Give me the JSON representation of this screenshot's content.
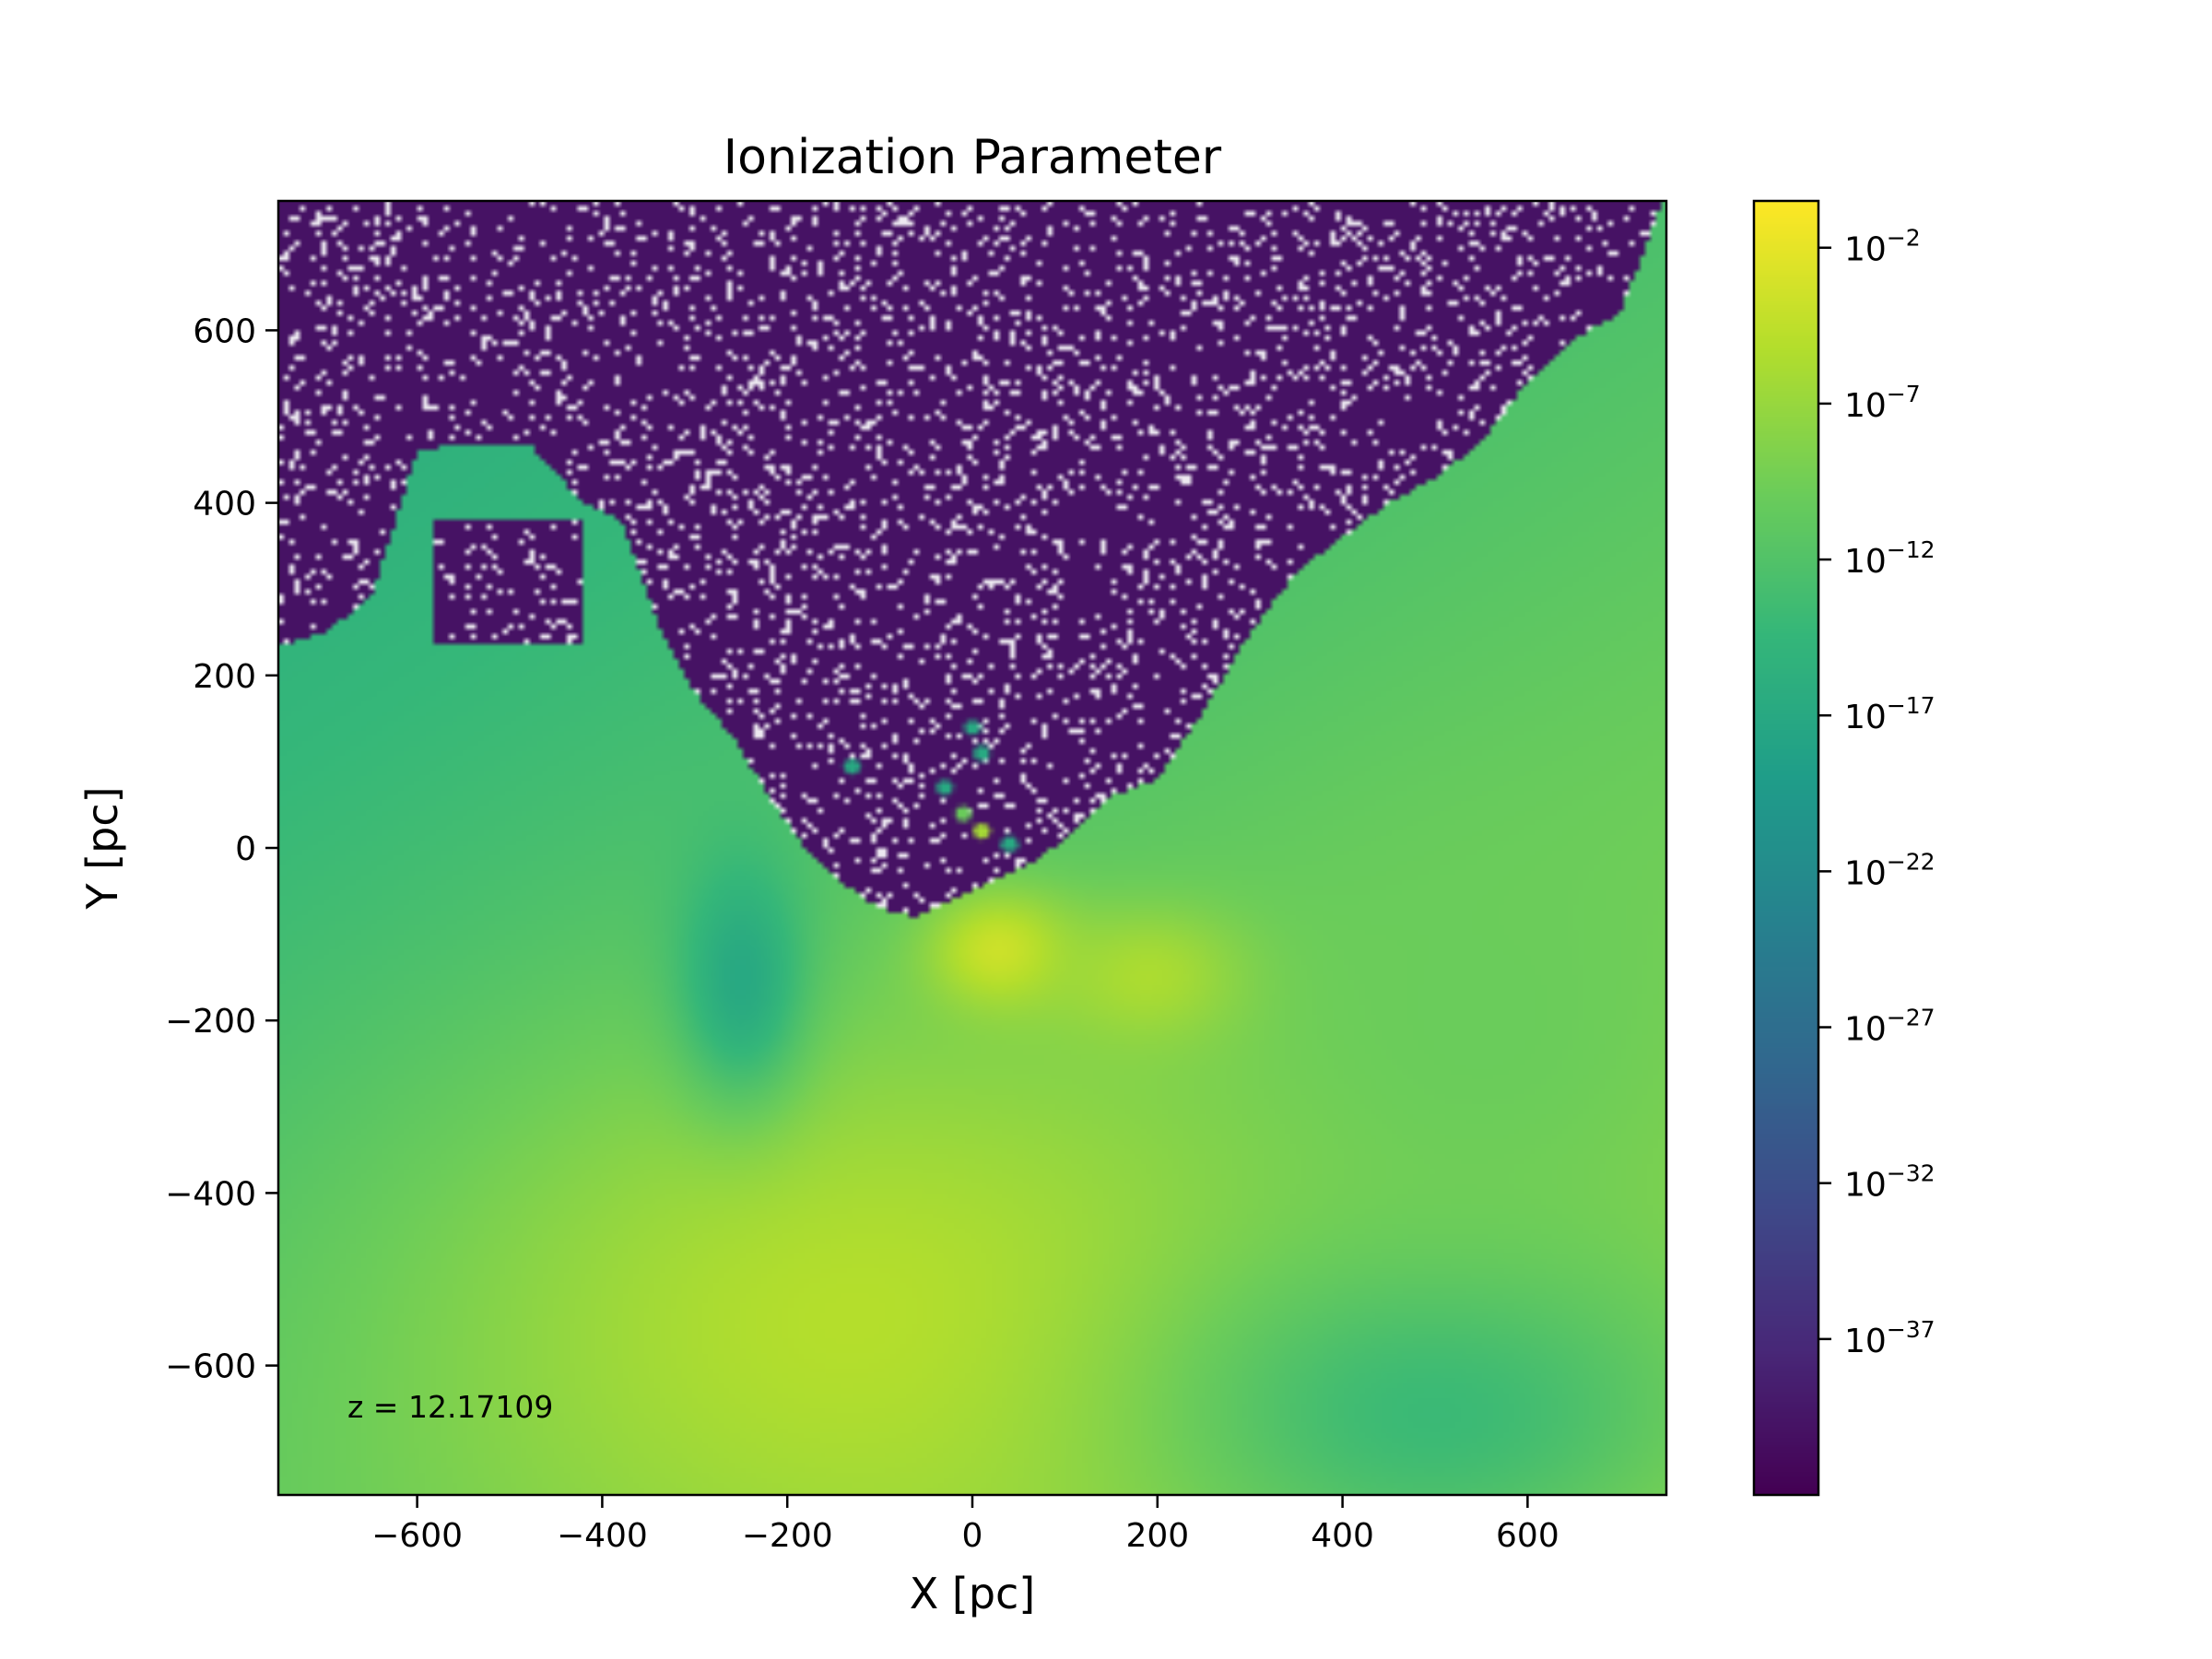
{
  "chart_data": {
    "type": "heatmap",
    "title": "Ionization Parameter",
    "xlabel": "X [pc]",
    "ylabel": "Y [pc]",
    "xlim": [
      -750,
      750
    ],
    "ylim": [
      -750,
      750
    ],
    "x_ticks": [
      -600,
      -400,
      -200,
      0,
      200,
      400,
      600
    ],
    "x_tick_labels": [
      "−600",
      "−400",
      "−200",
      "0",
      "200",
      "400",
      "600"
    ],
    "y_ticks": [
      -600,
      -400,
      -200,
      0,
      200,
      400,
      600
    ],
    "y_tick_labels": [
      "−600",
      "−400",
      "−200",
      "0",
      "200",
      "400",
      "600"
    ],
    "annotation": "z = 12.17109",
    "annotation_color": "#ffffff",
    "colormap": "viridis",
    "colorbar": {
      "scale": "log",
      "log_range": [
        -42,
        -0.5
      ],
      "ticks": [
        {
          "base": "10",
          "exp": "−2",
          "log": -2
        },
        {
          "base": "10",
          "exp": "−7",
          "log": -7
        },
        {
          "base": "10",
          "exp": "−12",
          "log": -12
        },
        {
          "base": "10",
          "exp": "−17",
          "log": -17
        },
        {
          "base": "10",
          "exp": "−22",
          "log": -22
        },
        {
          "base": "10",
          "exp": "−27",
          "log": -27
        },
        {
          "base": "10",
          "exp": "−32",
          "log": -32
        },
        {
          "base": "10",
          "exp": "−37",
          "log": -37
        }
      ]
    },
    "regions": {
      "background_value_log": -40,
      "upper_boundary_x": [
        -750,
        -700,
        -650,
        -600,
        -550,
        -480,
        -420,
        -380,
        -340,
        -300,
        -260,
        -220,
        -180,
        -140,
        -100,
        -60,
        -20,
        20,
        60,
        100,
        150,
        200,
        250,
        300,
        350,
        400,
        450,
        500,
        550,
        600,
        650,
        700,
        750
      ],
      "upper_boundary_y": [
        235,
        250,
        290,
        460,
        470,
        470,
        400,
        380,
        260,
        180,
        130,
        60,
        0,
        -40,
        -70,
        -80,
        -60,
        -40,
        -20,
        10,
        60,
        80,
        160,
        250,
        320,
        360,
        400,
        430,
        470,
        540,
        590,
        620,
        760
      ],
      "dark_box": {
        "x": [
          -580,
          -420
        ],
        "y": [
          235,
          380
        ]
      },
      "hot_spots": [
        {
          "x": 30,
          "y": -120,
          "log": -3,
          "rx": 80,
          "ry": 70
        },
        {
          "x": 200,
          "y": -150,
          "log": -5,
          "rx": 110,
          "ry": 80
        },
        {
          "x": -100,
          "y": -550,
          "log": -5,
          "rx": 500,
          "ry": 350
        },
        {
          "x": 500,
          "y": -650,
          "log": -14,
          "rx": 300,
          "ry": 200
        },
        {
          "x": 550,
          "y": -200,
          "log": -10,
          "rx": 250,
          "ry": 250
        },
        {
          "x": -250,
          "y": -150,
          "log": -17,
          "rx": 70,
          "ry": 140
        }
      ],
      "filaments": [
        {
          "x": -130,
          "y": 95,
          "log": -17
        },
        {
          "x": 0,
          "y": 140,
          "log": -17
        },
        {
          "x": 10,
          "y": 110,
          "log": -17
        },
        {
          "x": -30,
          "y": 70,
          "log": -17
        },
        {
          "x": -10,
          "y": 40,
          "log": -10
        },
        {
          "x": 10,
          "y": 20,
          "log": -6
        },
        {
          "x": 40,
          "y": 5,
          "log": -17
        }
      ]
    }
  }
}
